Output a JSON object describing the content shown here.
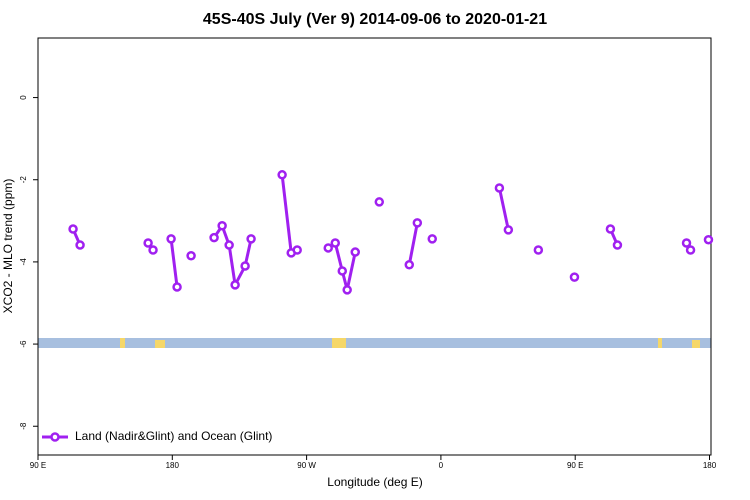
{
  "chart_data": {
    "type": "line",
    "title": "45S-40S July (Ver 9)   2014-09-06 to 2020-01-21",
    "x_label": "Longitude (deg E)",
    "y_label": "XCO2 - MLO trend (ppm)",
    "xlim": [
      90,
      541
    ],
    "ylim": [
      -8.7,
      1.45
    ],
    "xticks": [
      {
        "value": 90,
        "label": "90 E"
      },
      {
        "value": 180,
        "label": "180"
      },
      {
        "value": 270,
        "label": "90 W"
      },
      {
        "value": 360,
        "label": "0"
      },
      {
        "value": 450,
        "label": "90 E"
      },
      {
        "value": 540,
        "label": "180"
      }
    ],
    "yticks": [
      0,
      -2,
      -4,
      -6,
      -8
    ],
    "legend": "bottom-left",
    "series": [
      {
        "name": "Land (Nadir&Glint) and Ocean (Glint)",
        "color": "#a020f0",
        "x": [
          113.5,
          118.2,
          null,
          163.8,
          167.1,
          null,
          179.2,
          183.2,
          null,
          192.6,
          null,
          208.0,
          213.4,
          218.1,
          222.1,
          228.8,
          232.8,
          null,
          253.6,
          259.7,
          263.7,
          null,
          284.5,
          289.2,
          293.9,
          297.2,
          302.6,
          null,
          318.7,
          null,
          338.8,
          344.2,
          null,
          354.2,
          null,
          399.2,
          405.2,
          null,
          425.3,
          null,
          449.5,
          null,
          473.6,
          478.3,
          null,
          524.6,
          527.3,
          null,
          539.3
        ],
        "values": [
          -3.2,
          -3.59,
          null,
          -3.54,
          -3.71,
          null,
          -3.44,
          -4.61,
          null,
          -3.85,
          null,
          -3.41,
          -3.12,
          -3.59,
          -4.56,
          -4.1,
          -3.44,
          null,
          -1.88,
          -3.78,
          -3.71,
          null,
          -3.66,
          -3.54,
          -4.22,
          -4.68,
          -3.76,
          null,
          -2.54,
          null,
          -4.07,
          -3.05,
          null,
          -3.44,
          null,
          -2.2,
          -3.22,
          null,
          -3.71,
          null,
          -4.37,
          null,
          -3.2,
          -3.59,
          null,
          -3.54,
          -3.71,
          null,
          -3.46
        ]
      }
    ]
  }
}
